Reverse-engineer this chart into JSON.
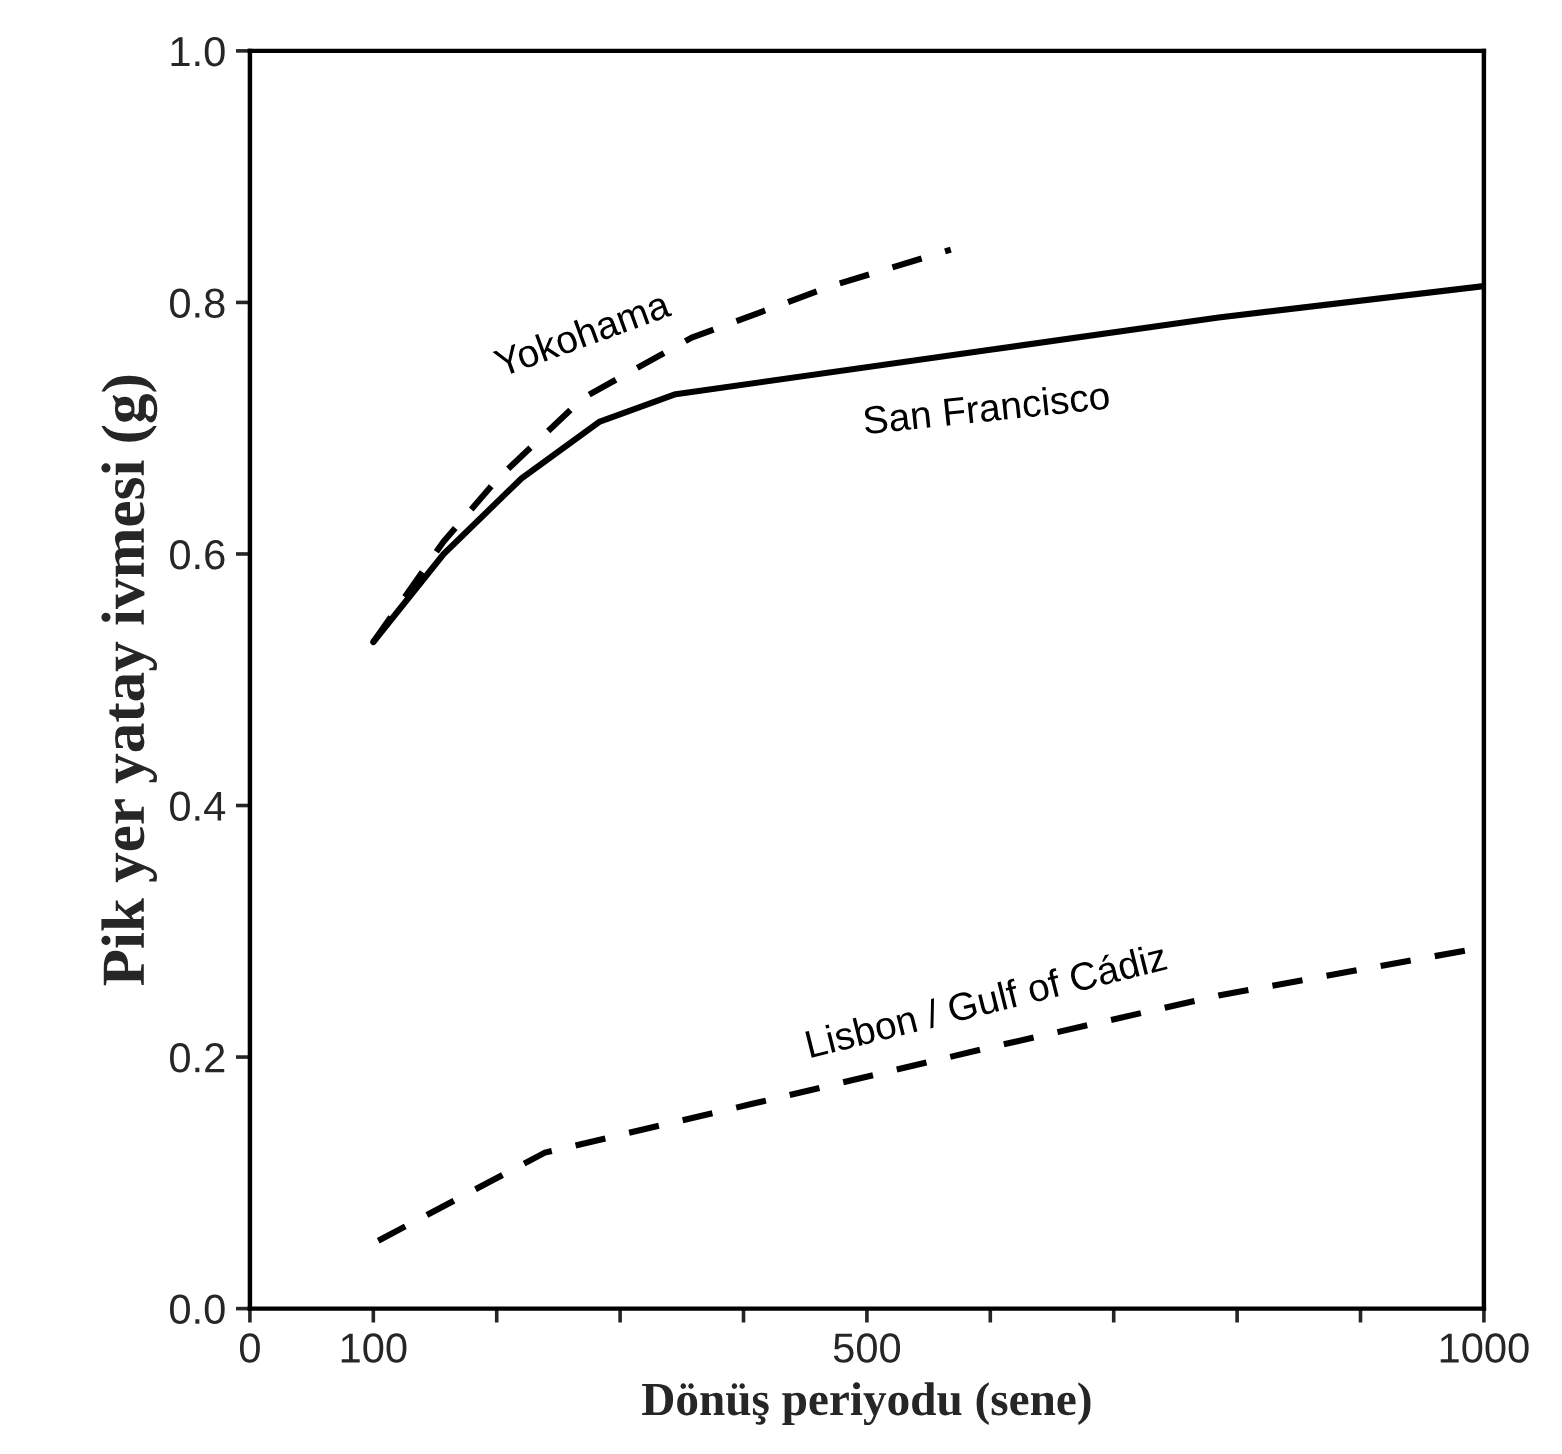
{
  "chart_data": {
    "type": "line",
    "xlabel": "Dönüş periyodu (sene)",
    "ylabel": "Pik yer yatay ivmesi (g)",
    "xlim": [
      0,
      1000
    ],
    "ylim": [
      0,
      1.0
    ],
    "xticks": [
      0,
      100,
      {
        "value": 200,
        "label": null
      },
      {
        "value": 300,
        "label": null
      },
      {
        "value": 400,
        "label": null
      },
      500,
      {
        "value": 600,
        "label": null
      },
      {
        "value": 700,
        "label": null
      },
      {
        "value": 800,
        "label": null
      },
      {
        "value": 900,
        "label": null
      },
      1000
    ],
    "yticks": [
      {
        "value": 0,
        "label": "0.0"
      },
      {
        "value": 0.2,
        "label": "0.2"
      },
      {
        "value": 0.4,
        "label": "0.4"
      },
      {
        "value": 0.6,
        "label": "0.6"
      },
      {
        "value": 0.8,
        "label": "0.8"
      },
      {
        "value": 1.0,
        "label": "1.0"
      }
    ],
    "grid": false,
    "legend": false,
    "marker": "none",
    "series": [
      {
        "name": "Yokohama",
        "color": "#000000",
        "line_style": "dashed",
        "x": [
          100,
          157,
          201,
          270,
          358,
          471,
          568
        ],
        "values": [
          0.53,
          0.61,
          0.66,
          0.724,
          0.772,
          0.813,
          0.842
        ]
      },
      {
        "name": "San Francisco",
        "color": "#000000",
        "line_style": "solid",
        "x": [
          100,
          157,
          220,
          283,
          345,
          597,
          785,
          1000
        ],
        "values": [
          0.53,
          0.6,
          0.66,
          0.705,
          0.727,
          0.762,
          0.788,
          0.813
        ]
      },
      {
        "name": "Lisbon / Gulf of Cádiz",
        "color": "#000000",
        "line_style": "dashed",
        "x": [
          104,
          239,
          408,
          597,
          785,
          998
        ],
        "values": [
          0.054,
          0.124,
          0.163,
          0.207,
          0.249,
          0.287
        ]
      }
    ]
  }
}
